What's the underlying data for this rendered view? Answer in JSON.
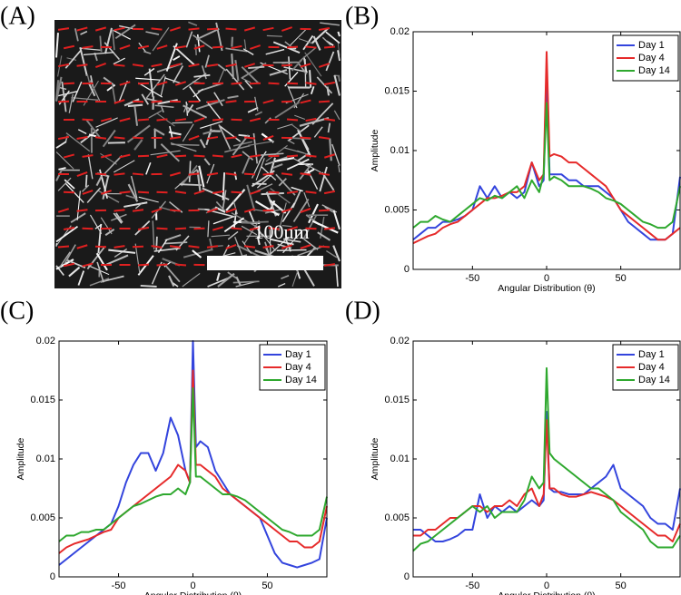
{
  "image_panel": {
    "label": "(A)",
    "scale_label": "100um"
  },
  "chart_data": [
    {
      "type": "line",
      "label": "(B)",
      "xlabel": "Angular Distribution (θ)",
      "ylabel": "Amplitude",
      "xlim": [
        -90,
        90
      ],
      "xticks": [
        -50,
        0,
        50
      ],
      "ylim": [
        0,
        0.02
      ],
      "yticks": [
        0,
        0.005,
        0.01,
        0.015,
        0.02
      ],
      "legend": "upper right",
      "x": [
        -90,
        -85,
        -80,
        -75,
        -70,
        -65,
        -60,
        -55,
        -50,
        -45,
        -40,
        -35,
        -30,
        -25,
        -20,
        -15,
        -10,
        -5,
        -2,
        0,
        2,
        5,
        10,
        15,
        20,
        25,
        30,
        35,
        40,
        45,
        50,
        55,
        60,
        65,
        70,
        75,
        80,
        85,
        90
      ],
      "series": [
        {
          "name": "Day 1",
          "color": "#3344dd",
          "values": [
            0.0025,
            0.003,
            0.0035,
            0.0035,
            0.004,
            0.004,
            0.0042,
            0.0045,
            0.005,
            0.007,
            0.006,
            0.007,
            0.006,
            0.0065,
            0.006,
            0.0065,
            0.009,
            0.007,
            0.0075,
            0.017,
            0.008,
            0.008,
            0.008,
            0.0075,
            0.0075,
            0.007,
            0.007,
            0.007,
            0.0065,
            0.006,
            0.005,
            0.004,
            0.0035,
            0.003,
            0.0025,
            0.0025,
            0.0025,
            0.003,
            0.0078
          ]
        },
        {
          "name": "Day 4",
          "color": "#e62a2a",
          "values": [
            0.0022,
            0.0025,
            0.0028,
            0.003,
            0.0035,
            0.0038,
            0.004,
            0.0045,
            0.005,
            0.0055,
            0.006,
            0.006,
            0.0062,
            0.0065,
            0.0065,
            0.007,
            0.009,
            0.0075,
            0.008,
            0.0183,
            0.0095,
            0.0097,
            0.0095,
            0.009,
            0.009,
            0.0085,
            0.008,
            0.0075,
            0.007,
            0.006,
            0.005,
            0.0045,
            0.004,
            0.0035,
            0.003,
            0.0025,
            0.0025,
            0.003,
            0.0035
          ]
        },
        {
          "name": "Day 14",
          "color": "#2ea82e",
          "values": [
            0.0035,
            0.004,
            0.004,
            0.0045,
            0.0042,
            0.004,
            0.0045,
            0.005,
            0.0055,
            0.006,
            0.0058,
            0.0062,
            0.006,
            0.0065,
            0.007,
            0.006,
            0.0075,
            0.0065,
            0.008,
            0.014,
            0.0075,
            0.0078,
            0.0075,
            0.007,
            0.007,
            0.007,
            0.0068,
            0.0065,
            0.006,
            0.0058,
            0.0055,
            0.005,
            0.0045,
            0.004,
            0.0038,
            0.0035,
            0.0035,
            0.004,
            0.007
          ]
        }
      ]
    },
    {
      "type": "line",
      "label": "(C)",
      "xlabel": "Angular Distribution (θ)",
      "ylabel": "Amplitude",
      "xlim": [
        -90,
        90
      ],
      "xticks": [
        -50,
        0,
        50
      ],
      "ylim": [
        0,
        0.02
      ],
      "yticks": [
        0,
        0.005,
        0.01,
        0.015,
        0.02
      ],
      "legend": "upper right",
      "x": [
        -90,
        -85,
        -80,
        -75,
        -70,
        -65,
        -60,
        -55,
        -50,
        -45,
        -40,
        -35,
        -30,
        -25,
        -20,
        -15,
        -10,
        -5,
        -2,
        0,
        2,
        5,
        10,
        15,
        20,
        25,
        30,
        35,
        40,
        45,
        50,
        55,
        60,
        65,
        70,
        75,
        80,
        85,
        90
      ],
      "series": [
        {
          "name": "Day 1",
          "color": "#3344dd",
          "values": [
            0.001,
            0.0015,
            0.002,
            0.0025,
            0.003,
            0.0035,
            0.004,
            0.0045,
            0.006,
            0.008,
            0.0095,
            0.0105,
            0.0105,
            0.009,
            0.0105,
            0.0135,
            0.012,
            0.009,
            0.008,
            0.02,
            0.011,
            0.0115,
            0.011,
            0.009,
            0.008,
            0.007,
            0.0065,
            0.006,
            0.0055,
            0.005,
            0.0035,
            0.002,
            0.0012,
            0.001,
            0.0008,
            0.001,
            0.0012,
            0.0015,
            0.005
          ]
        },
        {
          "name": "Day 4",
          "color": "#e62a2a",
          "values": [
            0.002,
            0.0025,
            0.0028,
            0.003,
            0.0032,
            0.0035,
            0.0038,
            0.004,
            0.005,
            0.0055,
            0.006,
            0.0065,
            0.007,
            0.0075,
            0.008,
            0.0085,
            0.0095,
            0.009,
            0.008,
            0.0175,
            0.0095,
            0.0095,
            0.009,
            0.0085,
            0.0075,
            0.007,
            0.0065,
            0.006,
            0.0055,
            0.005,
            0.0045,
            0.004,
            0.0035,
            0.003,
            0.003,
            0.0025,
            0.0025,
            0.003,
            0.006
          ]
        },
        {
          "name": "Day 14",
          "color": "#2ea82e",
          "values": [
            0.003,
            0.0035,
            0.0035,
            0.0038,
            0.0038,
            0.004,
            0.004,
            0.0045,
            0.005,
            0.0055,
            0.006,
            0.0062,
            0.0065,
            0.0068,
            0.007,
            0.007,
            0.0075,
            0.007,
            0.008,
            0.016,
            0.0085,
            0.0085,
            0.008,
            0.0075,
            0.007,
            0.007,
            0.0068,
            0.0065,
            0.006,
            0.0055,
            0.005,
            0.0045,
            0.004,
            0.0038,
            0.0035,
            0.0035,
            0.0035,
            0.004,
            0.0068
          ]
        }
      ]
    },
    {
      "type": "line",
      "label": "(D)",
      "xlabel": "Angular Distribution (θ)",
      "ylabel": "Amplitude",
      "xlim": [
        -90,
        90
      ],
      "xticks": [
        -50,
        0,
        50
      ],
      "ylim": [
        0,
        0.02
      ],
      "yticks": [
        0,
        0.005,
        0.01,
        0.015,
        0.02
      ],
      "legend": "upper right",
      "x": [
        -90,
        -85,
        -80,
        -75,
        -70,
        -65,
        -60,
        -55,
        -50,
        -45,
        -40,
        -35,
        -30,
        -25,
        -20,
        -15,
        -10,
        -5,
        -2,
        0,
        2,
        5,
        10,
        15,
        20,
        25,
        30,
        35,
        40,
        45,
        50,
        55,
        60,
        65,
        70,
        75,
        80,
        85,
        90
      ],
      "series": [
        {
          "name": "Day 1",
          "color": "#3344dd",
          "values": [
            0.004,
            0.004,
            0.0035,
            0.003,
            0.003,
            0.0032,
            0.0035,
            0.004,
            0.004,
            0.007,
            0.005,
            0.006,
            0.0055,
            0.006,
            0.0055,
            0.006,
            0.0065,
            0.006,
            0.0065,
            0.014,
            0.0075,
            0.0072,
            0.0072,
            0.007,
            0.007,
            0.007,
            0.0075,
            0.008,
            0.0085,
            0.0095,
            0.0075,
            0.007,
            0.0065,
            0.006,
            0.005,
            0.0045,
            0.0045,
            0.004,
            0.0075
          ]
        },
        {
          "name": "Day 4",
          "color": "#e62a2a",
          "values": [
            0.0035,
            0.0035,
            0.004,
            0.004,
            0.0045,
            0.005,
            0.005,
            0.0055,
            0.006,
            0.006,
            0.0055,
            0.006,
            0.006,
            0.0065,
            0.006,
            0.007,
            0.0075,
            0.006,
            0.007,
            0.0133,
            0.0075,
            0.0075,
            0.007,
            0.0068,
            0.0068,
            0.007,
            0.0072,
            0.007,
            0.0068,
            0.0065,
            0.006,
            0.0055,
            0.005,
            0.0045,
            0.004,
            0.0035,
            0.0035,
            0.003,
            0.0045
          ]
        },
        {
          "name": "Day 14",
          "color": "#2ea82e",
          "values": [
            0.0022,
            0.0028,
            0.003,
            0.0035,
            0.004,
            0.0045,
            0.005,
            0.0055,
            0.006,
            0.0055,
            0.006,
            0.005,
            0.0055,
            0.0055,
            0.0055,
            0.0065,
            0.0085,
            0.0075,
            0.008,
            0.0177,
            0.0105,
            0.01,
            0.0095,
            0.009,
            0.0085,
            0.008,
            0.0075,
            0.0075,
            0.007,
            0.0065,
            0.0055,
            0.005,
            0.0045,
            0.004,
            0.003,
            0.0025,
            0.0025,
            0.0025,
            0.0035
          ]
        }
      ]
    }
  ]
}
